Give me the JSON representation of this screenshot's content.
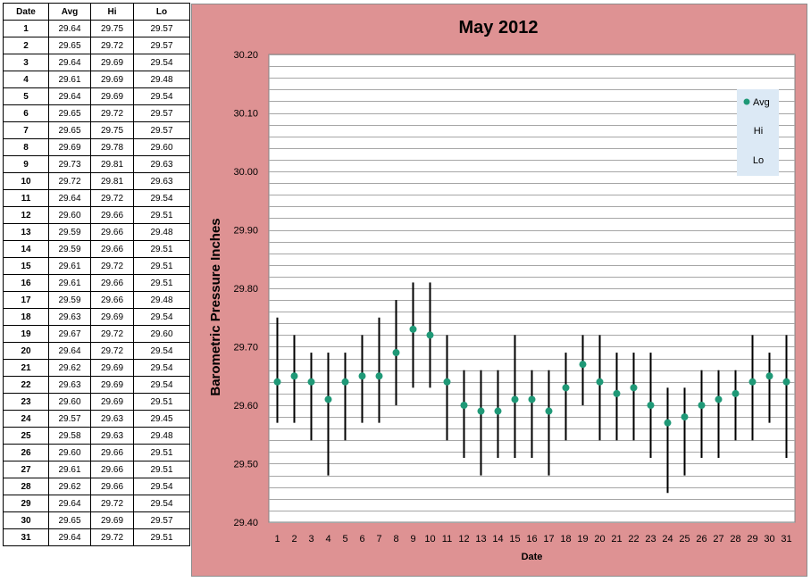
{
  "table": {
    "headers": [
      "Date",
      "Avg",
      "Hi",
      "Lo"
    ],
    "rows": [
      [
        "1",
        "29.64",
        "29.75",
        "29.57"
      ],
      [
        "2",
        "29.65",
        "29.72",
        "29.57"
      ],
      [
        "3",
        "29.64",
        "29.69",
        "29.54"
      ],
      [
        "4",
        "29.61",
        "29.69",
        "29.48"
      ],
      [
        "5",
        "29.64",
        "29.69",
        "29.54"
      ],
      [
        "6",
        "29.65",
        "29.72",
        "29.57"
      ],
      [
        "7",
        "29.65",
        "29.75",
        "29.57"
      ],
      [
        "8",
        "29.69",
        "29.78",
        "29.60"
      ],
      [
        "9",
        "29.73",
        "29.81",
        "29.63"
      ],
      [
        "10",
        "29.72",
        "29.81",
        "29.63"
      ],
      [
        "11",
        "29.64",
        "29.72",
        "29.54"
      ],
      [
        "12",
        "29.60",
        "29.66",
        "29.51"
      ],
      [
        "13",
        "29.59",
        "29.66",
        "29.48"
      ],
      [
        "14",
        "29.59",
        "29.66",
        "29.51"
      ],
      [
        "15",
        "29.61",
        "29.72",
        "29.51"
      ],
      [
        "16",
        "29.61",
        "29.66",
        "29.51"
      ],
      [
        "17",
        "29.59",
        "29.66",
        "29.48"
      ],
      [
        "18",
        "29.63",
        "29.69",
        "29.54"
      ],
      [
        "19",
        "29.67",
        "29.72",
        "29.60"
      ],
      [
        "20",
        "29.64",
        "29.72",
        "29.54"
      ],
      [
        "21",
        "29.62",
        "29.69",
        "29.54"
      ],
      [
        "22",
        "29.63",
        "29.69",
        "29.54"
      ],
      [
        "23",
        "29.60",
        "29.69",
        "29.51"
      ],
      [
        "24",
        "29.57",
        "29.63",
        "29.45"
      ],
      [
        "25",
        "29.58",
        "29.63",
        "29.48"
      ],
      [
        "26",
        "29.60",
        "29.66",
        "29.51"
      ],
      [
        "27",
        "29.61",
        "29.66",
        "29.51"
      ],
      [
        "28",
        "29.62",
        "29.66",
        "29.54"
      ],
      [
        "29",
        "29.64",
        "29.72",
        "29.54"
      ],
      [
        "30",
        "29.65",
        "29.69",
        "29.57"
      ],
      [
        "31",
        "29.64",
        "29.72",
        "29.51"
      ]
    ]
  },
  "chart_data": {
    "type": "scatter",
    "title": "May 2012",
    "xlabel": "Date",
    "ylabel": "Barometric Pressure Inches",
    "x": [
      1,
      2,
      3,
      4,
      5,
      6,
      7,
      8,
      9,
      10,
      11,
      12,
      13,
      14,
      15,
      16,
      17,
      18,
      19,
      20,
      21,
      22,
      23,
      24,
      25,
      26,
      27,
      28,
      29,
      30,
      31
    ],
    "series": [
      {
        "name": "Avg",
        "values": [
          29.64,
          29.65,
          29.64,
          29.61,
          29.64,
          29.65,
          29.65,
          29.69,
          29.73,
          29.72,
          29.64,
          29.6,
          29.59,
          29.59,
          29.61,
          29.61,
          29.59,
          29.63,
          29.67,
          29.64,
          29.62,
          29.63,
          29.6,
          29.57,
          29.58,
          29.6,
          29.61,
          29.62,
          29.64,
          29.65,
          29.64
        ]
      },
      {
        "name": "Hi",
        "values": [
          29.75,
          29.72,
          29.69,
          29.69,
          29.69,
          29.72,
          29.75,
          29.78,
          29.81,
          29.81,
          29.72,
          29.66,
          29.66,
          29.66,
          29.72,
          29.66,
          29.66,
          29.69,
          29.72,
          29.72,
          29.69,
          29.69,
          29.69,
          29.63,
          29.63,
          29.66,
          29.66,
          29.66,
          29.72,
          29.69,
          29.72
        ]
      },
      {
        "name": "Lo",
        "values": [
          29.57,
          29.57,
          29.54,
          29.48,
          29.54,
          29.57,
          29.57,
          29.6,
          29.63,
          29.63,
          29.54,
          29.51,
          29.48,
          29.51,
          29.51,
          29.51,
          29.48,
          29.54,
          29.6,
          29.54,
          29.54,
          29.54,
          29.51,
          29.45,
          29.48,
          29.51,
          29.51,
          29.54,
          29.54,
          29.57,
          29.51
        ]
      }
    ],
    "y_ticks": [
      "30.20",
      "30.10",
      "30.00",
      "29.90",
      "29.80",
      "29.70",
      "29.60",
      "29.50",
      "29.40"
    ],
    "x_ticks": [
      "1",
      "2",
      "3",
      "4",
      "5",
      "6",
      "7",
      "8",
      "9",
      "10",
      "11",
      "12",
      "13",
      "14",
      "15",
      "16",
      "17",
      "18",
      "19",
      "20",
      "21",
      "22",
      "23",
      "24",
      "25",
      "26",
      "27",
      "28",
      "29",
      "30",
      "31"
    ],
    "ylim": [
      29.4,
      30.2
    ],
    "grid": true,
    "legend": "top-right",
    "legend_entries": [
      "Avg",
      "Hi",
      "Lo"
    ],
    "colors": {
      "panel_bg": "#DE9293",
      "plot_bg": "#FFFFFF",
      "gridline": "#A6A6A6",
      "marker": "#1F9977",
      "range_bar": "#000000",
      "legend_bg": "#DCE9F5"
    }
  }
}
